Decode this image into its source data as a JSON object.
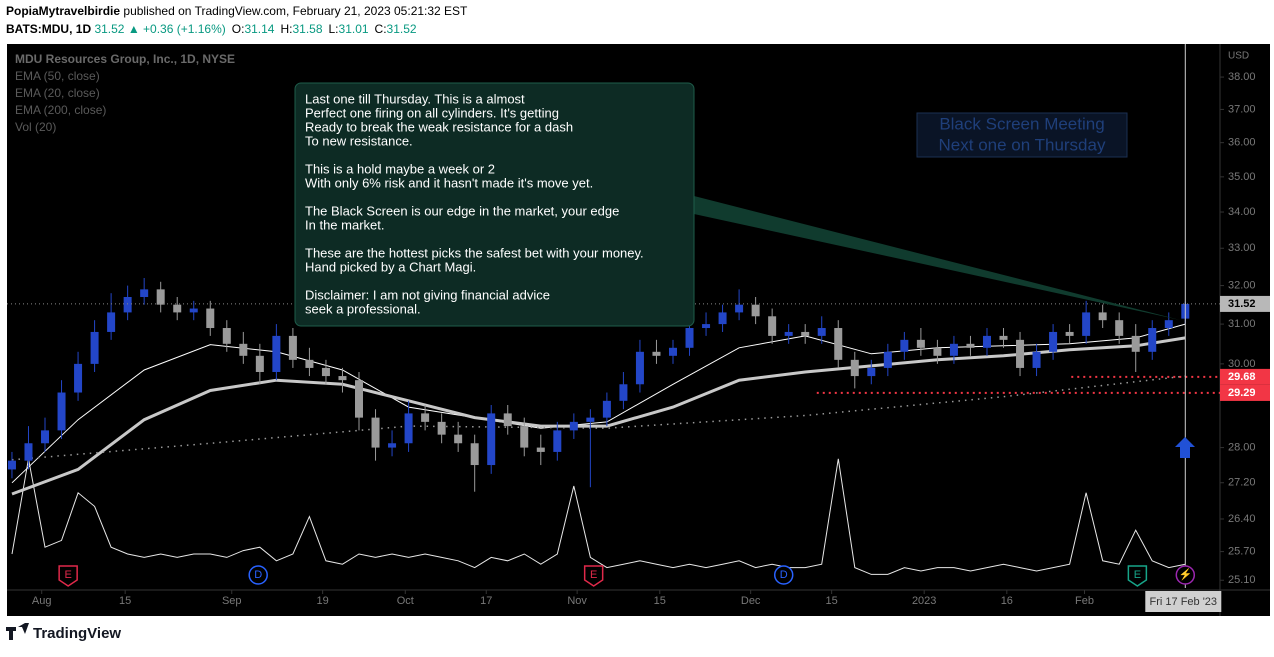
{
  "header": {
    "publisher": "PopiaMytravelbirdie",
    "published": "published on TradingView.com, February 21, 2023 05:21:32 EST",
    "symbol": "BATS:MDU, 1D",
    "last": "31.52",
    "change": "▲ +0.36 (+1.16%)",
    "ohlc": [
      {
        "k": "O:",
        "v": "31.14"
      },
      {
        "k": "H:",
        "v": "31.58"
      },
      {
        "k": "L:",
        "v": "31.01"
      },
      {
        "k": "C:",
        "v": "31.52"
      }
    ]
  },
  "footer": {
    "brand": "TradingView"
  },
  "chart_data": {
    "type": "candlestick",
    "title": "MDU Resources Group, Inc., 1D, NYSE",
    "currency": "USD",
    "legend": [
      "EMA (50, close)",
      "EMA (20, close)",
      "EMA (200, close)",
      "Vol (20)"
    ],
    "log_scale": true,
    "grid": false,
    "up_color": "#2346c8",
    "down_color": "#9a9a9a",
    "ylim": [
      24.94,
      39.05
    ],
    "yticks": [
      {
        "value": 38,
        "label": "38.00"
      },
      {
        "value": 37,
        "label": "37.00"
      },
      {
        "value": 36,
        "label": "36.00"
      },
      {
        "value": 35,
        "label": "35.00"
      },
      {
        "value": 34,
        "label": "34.00"
      },
      {
        "value": 33,
        "label": "33.00"
      },
      {
        "value": 32,
        "label": "32.00"
      },
      {
        "value": 31,
        "label": "31.00"
      },
      {
        "value": 30,
        "label": "30.00"
      },
      {
        "value": 28,
        "label": "28.00"
      },
      {
        "value": 27.2,
        "label": "27.20"
      },
      {
        "value": 26.4,
        "label": "26.40"
      },
      {
        "value": 25.7,
        "label": "25.70"
      },
      {
        "value": 25.1,
        "label": "25.10"
      }
    ],
    "xlim": [
      -0.3,
      73.1
    ],
    "xticks": [
      {
        "value": 1.8,
        "label": "Aug"
      },
      {
        "value": 6.85,
        "label": "15"
      },
      {
        "value": 13.3,
        "label": "Sep"
      },
      {
        "value": 18.8,
        "label": "19"
      },
      {
        "value": 23.8,
        "label": "Oct"
      },
      {
        "value": 28.7,
        "label": "17"
      },
      {
        "value": 34.2,
        "label": "Nov"
      },
      {
        "value": 39.2,
        "label": "15"
      },
      {
        "value": 44.7,
        "label": "Dec"
      },
      {
        "value": 49.6,
        "label": "15"
      },
      {
        "value": 55.2,
        "label": "2023"
      },
      {
        "value": 60.2,
        "label": "16"
      },
      {
        "value": 64.9,
        "label": "Feb"
      }
    ],
    "open": [
      27.5,
      27.7,
      28.1,
      28.4,
      29.3,
      30.0,
      30.8,
      31.3,
      31.7,
      31.9,
      31.5,
      31.3,
      31.4,
      30.9,
      30.5,
      30.2,
      29.8,
      30.7,
      30.1,
      29.9,
      29.7,
      29.6,
      28.7,
      28.0,
      28.1,
      28.8,
      28.6,
      28.3,
      28.1,
      27.6,
      28.8,
      28.5,
      28.0,
      27.9,
      28.4,
      28.6,
      28.7,
      29.1,
      29.5,
      30.3,
      30.2,
      30.4,
      30.9,
      31.0,
      31.3,
      31.5,
      31.2,
      30.7,
      30.8,
      30.7,
      30.9,
      30.1,
      29.7,
      29.9,
      30.3,
      30.6,
      30.4,
      30.2,
      30.5,
      30.4,
      30.7,
      30.6,
      29.9,
      30.3,
      30.8,
      30.7,
      31.3,
      31.1,
      30.7,
      30.3,
      30.9,
      31.14
    ],
    "high": [
      27.9,
      28.5,
      28.7,
      29.6,
      30.3,
      31.1,
      31.8,
      32.0,
      32.2,
      32.1,
      31.7,
      31.6,
      31.6,
      31.1,
      30.8,
      30.5,
      31.0,
      30.9,
      30.4,
      30.1,
      29.9,
      29.8,
      28.9,
      28.4,
      29.1,
      29.0,
      28.8,
      28.6,
      28.3,
      29.0,
      29.0,
      28.7,
      28.3,
      28.6,
      28.8,
      28.9,
      29.3,
      29.8,
      30.6,
      30.6,
      30.6,
      31.1,
      31.3,
      31.5,
      31.9,
      31.7,
      31.4,
      31.0,
      31.0,
      31.2,
      31.1,
      30.3,
      30.1,
      30.5,
      30.8,
      30.9,
      30.6,
      30.7,
      30.7,
      30.9,
      30.9,
      30.8,
      30.5,
      31.0,
      31.0,
      31.6,
      31.5,
      31.3,
      31.0,
      31.1,
      31.3,
      31.58
    ],
    "low": [
      27.3,
      27.5,
      27.9,
      28.2,
      29.1,
      29.8,
      30.6,
      31.1,
      31.5,
      31.3,
      31.1,
      31.1,
      30.7,
      30.3,
      30.0,
      29.5,
      29.6,
      29.9,
      29.7,
      29.5,
      29.3,
      28.4,
      27.7,
      27.8,
      27.9,
      28.4,
      28.1,
      27.9,
      27.0,
      27.4,
      28.3,
      27.8,
      27.6,
      27.7,
      28.2,
      27.1,
      28.5,
      28.9,
      29.3,
      30.0,
      30.0,
      30.2,
      30.7,
      30.8,
      31.1,
      31.0,
      30.5,
      30.5,
      30.5,
      30.5,
      29.9,
      29.4,
      29.5,
      29.7,
      30.1,
      30.2,
      30.0,
      30.0,
      30.2,
      30.2,
      30.4,
      29.7,
      29.7,
      30.1,
      30.5,
      30.5,
      30.9,
      30.5,
      29.8,
      30.1,
      30.7,
      31.01
    ],
    "close": [
      27.7,
      28.1,
      28.4,
      29.3,
      30.0,
      30.8,
      31.3,
      31.7,
      31.9,
      31.5,
      31.3,
      31.4,
      30.9,
      30.5,
      30.2,
      29.8,
      30.7,
      30.1,
      29.9,
      29.7,
      29.6,
      28.7,
      28.0,
      28.1,
      28.8,
      28.6,
      28.3,
      28.1,
      27.6,
      28.8,
      28.5,
      28.0,
      27.9,
      28.4,
      28.6,
      28.7,
      29.1,
      29.5,
      30.3,
      30.2,
      30.4,
      30.9,
      31.0,
      31.3,
      31.5,
      31.2,
      30.7,
      30.8,
      30.7,
      30.9,
      30.1,
      29.7,
      29.9,
      30.3,
      30.6,
      30.4,
      30.2,
      30.5,
      30.4,
      30.7,
      30.6,
      29.9,
      30.3,
      30.8,
      30.7,
      31.3,
      31.1,
      30.7,
      30.3,
      30.9,
      31.1,
      31.52
    ],
    "lines": [
      {
        "name": "EMA (20, close)",
        "color": "#ffffff",
        "width": 1,
        "x": [
          0,
          4,
          8,
          12,
          16,
          20,
          24,
          28,
          32,
          36,
          40,
          44,
          48,
          52,
          56,
          60,
          64,
          68,
          71
        ],
        "values": [
          27.2,
          28.65,
          29.85,
          30.48,
          30.3,
          29.85,
          28.95,
          28.7,
          28.45,
          28.6,
          29.5,
          30.4,
          30.7,
          30.25,
          30.4,
          30.45,
          30.5,
          30.65,
          31.0
        ]
      },
      {
        "name": "EMA (50, close)",
        "color": "#c8c8c8",
        "width": 3,
        "x": [
          0,
          4,
          8,
          12,
          16,
          20,
          24,
          28,
          32,
          36,
          40,
          44,
          48,
          52,
          56,
          60,
          64,
          68,
          71
        ],
        "values": [
          26.95,
          27.5,
          28.65,
          29.35,
          29.6,
          29.5,
          29.1,
          28.7,
          28.5,
          28.5,
          28.95,
          29.6,
          29.8,
          29.95,
          30.1,
          30.2,
          30.35,
          30.45,
          30.65
        ]
      },
      {
        "name": "EMA (200, close)",
        "color": "#9a9a9a",
        "width": 1.5,
        "dash": true,
        "x": [
          0,
          12,
          24,
          36,
          48,
          60,
          71
        ],
        "values": [
          27.72,
          28.1,
          28.5,
          28.45,
          28.75,
          29.2,
          29.7
        ]
      }
    ],
    "y2lim": [
      0,
      8
    ],
    "volume": [
      0.5,
      1.9,
      0.6,
      0.7,
      1.4,
      1.2,
      0.6,
      0.5,
      0.45,
      0.5,
      0.45,
      0.5,
      0.5,
      0.45,
      0.55,
      0.6,
      0.4,
      0.5,
      1.05,
      0.4,
      0.35,
      0.5,
      0.45,
      0.5,
      0.45,
      0.5,
      0.45,
      0.4,
      0.3,
      0.45,
      0.4,
      0.5,
      0.35,
      0.5,
      1.5,
      0.45,
      0.3,
      0.35,
      0.4,
      0.35,
      0.3,
      0.35,
      0.3,
      0.35,
      0.4,
      0.3,
      0.35,
      0.3,
      0.3,
      0.35,
      1.9,
      0.3,
      0.2,
      0.2,
      0.3,
      0.25,
      0.3,
      0.3,
      0.25,
      0.3,
      0.35,
      0.3,
      0.25,
      0.3,
      0.35,
      1.4,
      0.4,
      0.35,
      0.85,
      0.4,
      0.3,
      0.35
    ],
    "levels": [
      {
        "value": 29.68,
        "label": "29.68",
        "x_from": 64.1
      },
      {
        "value": 29.29,
        "label": "29.29",
        "x_from": 48.7
      }
    ],
    "last_price": {
      "value": 31.52,
      "label": "31.52"
    },
    "cursor": {
      "x": 71,
      "label": "Fri 17 Feb '23"
    },
    "events": [
      {
        "label": "E",
        "x": 3.4,
        "kind": "earnings"
      },
      {
        "label": "D",
        "x": 14.9,
        "kind": "dividend"
      },
      {
        "label": "E",
        "x": 35.2,
        "kind": "earnings"
      },
      {
        "label": "D",
        "x": 46.7,
        "kind": "dividend"
      },
      {
        "label": "E",
        "x": 68.1,
        "kind": "earnings-next"
      },
      {
        "label": "⚡",
        "x": 71,
        "kind": "split"
      }
    ],
    "note": [
      [
        "Last one till Thursday. This is a almost",
        "Perfect one firing on all cylinders. It's getting",
        "Ready to break the weak resistance for a dash",
        "To new resistance."
      ],
      [
        "This is a hold maybe a week or 2",
        "With only 6% risk and it hasn't made it's move yet."
      ],
      [
        "The Black Screen is our edge in the market, your edge",
        "In the market."
      ],
      [
        "These are the hottest picks the safest bet with your money.",
        "Hand picked by a Chart Magi."
      ],
      [
        "Disclaimer: I am not giving financial advice",
        "seek a professional."
      ]
    ],
    "callout": [
      "Black Screen Meeting",
      "Next one on Thursday"
    ]
  }
}
